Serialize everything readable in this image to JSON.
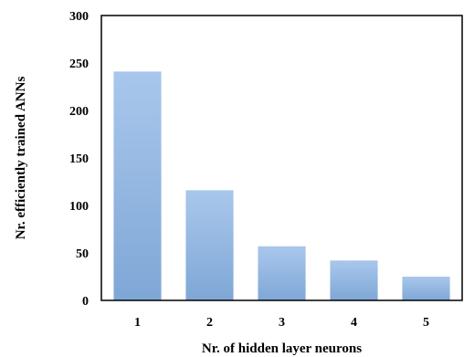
{
  "chart_data": {
    "type": "bar",
    "categories": [
      "1",
      "2",
      "3",
      "4",
      "5"
    ],
    "values": [
      241,
      116,
      57,
      42,
      25
    ],
    "xlabel": "Nr. of hidden layer neurons",
    "ylabel": "Nr. efficiently trained ANNs",
    "ylim": [
      0,
      300
    ],
    "yticks": [
      "0",
      "50",
      "100",
      "150",
      "200",
      "250",
      "300"
    ],
    "grid": false,
    "legend": "none",
    "colors": {
      "bar_top": "#a9c7ec",
      "bar_bottom": "#7fa7d6",
      "axis": "#000000"
    }
  }
}
